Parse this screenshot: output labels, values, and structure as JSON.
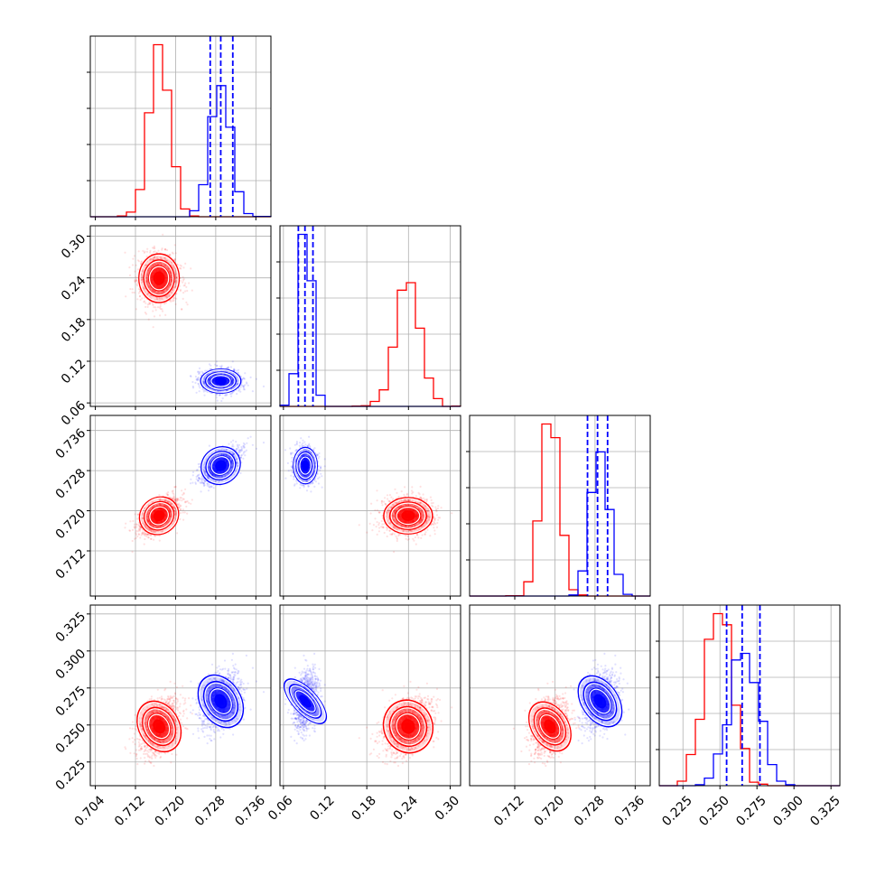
{
  "chart_data": {
    "type": "corner",
    "title": "",
    "params": [
      {
        "name": "",
        "xlim": [
          0.703,
          0.739
        ],
        "ticks": [
          "0.704",
          "0.712",
          "0.720",
          "0.728",
          "0.736"
        ]
      },
      {
        "name": "",
        "xlim": [
          0.055,
          0.315
        ],
        "ticks": [
          "0.06",
          "0.12",
          "0.18",
          "0.24",
          "0.30"
        ]
      },
      {
        "name": "",
        "xlim": [
          0.703,
          0.739
        ],
        "ticks": [
          "0.712",
          "0.720",
          "0.728",
          "0.736"
        ]
      },
      {
        "name": "",
        "xlim": [
          0.209,
          0.331
        ],
        "ticks": [
          "0.225",
          "0.250",
          "0.275",
          "0.300",
          "0.325"
        ]
      }
    ],
    "colors": {
      "series_a": "#ff0000",
      "series_b": "#0000ff"
    },
    "grid": true,
    "series": [
      {
        "color": "#ff0000",
        "mean": [
          0.7167,
          0.2395,
          0.719,
          0.249
        ],
        "std": [
          0.002,
          0.0175,
          0.0018,
          0.009
        ]
      },
      {
        "color": "#0000ff",
        "mean": [
          0.729,
          0.0915,
          0.729,
          0.266
        ],
        "std": [
          0.002,
          0.0085,
          0.0018,
          0.0095
        ]
      }
    ],
    "quantile_lines": [
      [
        0.7269,
        0.729,
        0.7314
      ],
      [
        0.0815,
        0.091,
        0.1025
      ],
      [
        0.7265,
        0.7285,
        0.7305
      ],
      [
        0.2545,
        0.265,
        0.277
      ]
    ],
    "scatter_counts": {
      "red": 1400,
      "blue": 1100
    }
  }
}
